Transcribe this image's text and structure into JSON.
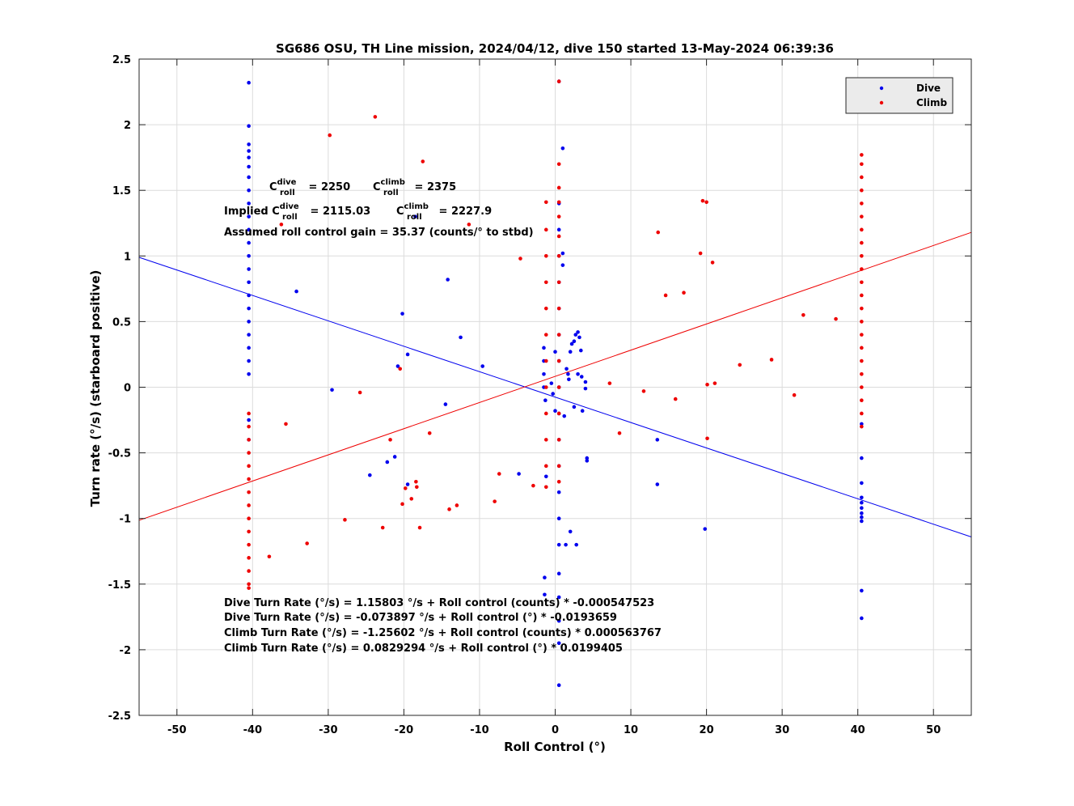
{
  "chart_data": {
    "type": "scatter",
    "title": "SG686 OSU, TH Line mission, 2024/04/12, dive 150 started 13-May-2024 06:39:36",
    "xlabel": "Roll Control (°)",
    "ylabel": "Turn rate (°/s) (starboard positive)",
    "xlim": [
      -55,
      55
    ],
    "ylim": [
      -2.5,
      2.5
    ],
    "xticks": [
      -50,
      -40,
      -30,
      -20,
      -10,
      0,
      10,
      20,
      30,
      40,
      50
    ],
    "yticks": [
      -2.5,
      -2,
      -1.5,
      -1,
      -0.5,
      0,
      0.5,
      1,
      1.5,
      2,
      2.5
    ],
    "grid": true,
    "legend_position": "top-right",
    "series": [
      {
        "name": "Dive",
        "color": "#0000ee",
        "points": [
          [
            -40.5,
            2.32
          ],
          [
            -40.5,
            1.99
          ],
          [
            -40.5,
            1.85
          ],
          [
            -40.5,
            1.8
          ],
          [
            -40.5,
            1.75
          ],
          [
            -40.5,
            1.68
          ],
          [
            -40.5,
            1.6
          ],
          [
            -40.5,
            1.5
          ],
          [
            -40.5,
            1.4
          ],
          [
            -40.5,
            1.3
          ],
          [
            -40.5,
            1.2
          ],
          [
            -40.5,
            1.1
          ],
          [
            -40.5,
            1.0
          ],
          [
            -40.5,
            0.9
          ],
          [
            -40.5,
            0.8
          ],
          [
            -40.5,
            0.7
          ],
          [
            -40.5,
            0.6
          ],
          [
            -40.5,
            0.5
          ],
          [
            -40.5,
            0.4
          ],
          [
            -40.5,
            0.3
          ],
          [
            -40.5,
            0.2
          ],
          [
            -40.5,
            0.1
          ],
          [
            -40.5,
            -0.25
          ],
          [
            -40.5,
            -0.4
          ],
          [
            -34.2,
            0.73
          ],
          [
            -29.5,
            -0.02
          ],
          [
            -24.5,
            -0.67
          ],
          [
            -22.2,
            -0.57
          ],
          [
            -21.2,
            -0.53
          ],
          [
            -20.8,
            0.16
          ],
          [
            -20.2,
            0.56
          ],
          [
            -19.5,
            0.25
          ],
          [
            -19.5,
            -0.74
          ],
          [
            -18.5,
            1.3
          ],
          [
            -14.5,
            -0.13
          ],
          [
            -14.2,
            0.82
          ],
          [
            -12.5,
            0.38
          ],
          [
            -9.6,
            0.16
          ],
          [
            -4.8,
            -0.66
          ],
          [
            -1.5,
            0.3
          ],
          [
            -1.5,
            0.2
          ],
          [
            -1.5,
            0.1
          ],
          [
            -1.5,
            0.0
          ],
          [
            -1.3,
            -0.1
          ],
          [
            -1.2,
            -0.68
          ],
          [
            -1.4,
            -1.45
          ],
          [
            -1.4,
            -1.58
          ],
          [
            -0.5,
            0.03
          ],
          [
            -0.3,
            -0.05
          ],
          [
            0.0,
            0.27
          ],
          [
            0.0,
            -0.18
          ],
          [
            0.5,
            2.33
          ],
          [
            0.5,
            1.4
          ],
          [
            0.5,
            1.2
          ],
          [
            0.5,
            1.0
          ],
          [
            0.5,
            0.8
          ],
          [
            0.5,
            0.6
          ],
          [
            0.5,
            0.4
          ],
          [
            0.5,
            0.2
          ],
          [
            0.5,
            0.0
          ],
          [
            0.5,
            -0.2
          ],
          [
            0.5,
            -0.4
          ],
          [
            0.5,
            -0.6
          ],
          [
            0.5,
            -0.8
          ],
          [
            0.5,
            -1.0
          ],
          [
            0.5,
            -1.2
          ],
          [
            0.5,
            -1.42
          ],
          [
            0.5,
            -1.6
          ],
          [
            0.5,
            -1.78
          ],
          [
            0.5,
            -1.95
          ],
          [
            0.5,
            -2.27
          ],
          [
            1.0,
            1.82
          ],
          [
            1.0,
            1.02
          ],
          [
            1.0,
            0.93
          ],
          [
            1.2,
            -0.22
          ],
          [
            1.5,
            0.14
          ],
          [
            1.7,
            0.1
          ],
          [
            1.8,
            0.06
          ],
          [
            2.0,
            0.27
          ],
          [
            2.2,
            0.33
          ],
          [
            2.5,
            0.35
          ],
          [
            2.5,
            -0.15
          ],
          [
            2.7,
            0.4
          ],
          [
            3.0,
            0.42
          ],
          [
            3.0,
            0.1
          ],
          [
            3.2,
            0.38
          ],
          [
            3.4,
            0.28
          ],
          [
            3.5,
            0.08
          ],
          [
            3.6,
            -0.18
          ],
          [
            4.0,
            0.04
          ],
          [
            4.0,
            -0.01
          ],
          [
            4.2,
            -0.54
          ],
          [
            4.2,
            -0.56
          ],
          [
            1.4,
            -1.2
          ],
          [
            2.0,
            -1.1
          ],
          [
            2.8,
            -1.2
          ],
          [
            13.5,
            -0.4
          ],
          [
            13.5,
            -0.74
          ],
          [
            19.8,
            -1.08
          ],
          [
            40.5,
            -0.28
          ],
          [
            40.5,
            -0.54
          ],
          [
            40.5,
            -0.73
          ],
          [
            40.5,
            -0.84
          ],
          [
            40.5,
            -0.88
          ],
          [
            40.5,
            -0.92
          ],
          [
            40.5,
            -0.96
          ],
          [
            40.5,
            -0.99
          ],
          [
            40.5,
            -1.02
          ],
          [
            40.5,
            -1.55
          ],
          [
            40.5,
            -1.76
          ]
        ],
        "fit_line": [
          [
            -55,
            0.9897
          ],
          [
            55,
            -1.1404
          ]
        ]
      },
      {
        "name": "Climb",
        "color": "#ee0000",
        "points": [
          [
            -40.5,
            -0.2
          ],
          [
            -40.5,
            -0.3
          ],
          [
            -40.5,
            -0.4
          ],
          [
            -40.5,
            -0.5
          ],
          [
            -40.5,
            -0.6
          ],
          [
            -40.5,
            -0.7
          ],
          [
            -40.5,
            -0.8
          ],
          [
            -40.5,
            -0.9
          ],
          [
            -40.5,
            -1.0
          ],
          [
            -40.5,
            -1.1
          ],
          [
            -40.5,
            -1.2
          ],
          [
            -40.5,
            -1.3
          ],
          [
            -40.5,
            -1.4
          ],
          [
            -40.5,
            -1.5
          ],
          [
            -40.5,
            -1.53
          ],
          [
            -37.8,
            -1.29
          ],
          [
            -36.2,
            1.24
          ],
          [
            -35.6,
            -0.28
          ],
          [
            -32.8,
            -1.19
          ],
          [
            -29.8,
            1.92
          ],
          [
            -27.8,
            -1.01
          ],
          [
            -25.8,
            -0.04
          ],
          [
            -23.8,
            2.06
          ],
          [
            -22.8,
            -1.07
          ],
          [
            -21.8,
            -0.4
          ],
          [
            -20.5,
            0.14
          ],
          [
            -20.2,
            -0.89
          ],
          [
            -19.8,
            -0.77
          ],
          [
            -19.0,
            -0.85
          ],
          [
            -18.4,
            -0.72
          ],
          [
            -18.3,
            -0.76
          ],
          [
            -17.9,
            -1.07
          ],
          [
            -17.5,
            1.72
          ],
          [
            -16.6,
            -0.35
          ],
          [
            -14.0,
            -0.93
          ],
          [
            -13.0,
            -0.9
          ],
          [
            -11.4,
            1.24
          ],
          [
            -8.0,
            -0.87
          ],
          [
            -7.4,
            -0.66
          ],
          [
            -4.6,
            0.98
          ],
          [
            -2.9,
            -0.75
          ],
          [
            -1.2,
            1.41
          ],
          [
            -1.2,
            1.2
          ],
          [
            -1.2,
            1.0
          ],
          [
            -1.2,
            0.8
          ],
          [
            -1.2,
            0.6
          ],
          [
            -1.2,
            0.4
          ],
          [
            -1.2,
            0.2
          ],
          [
            -1.2,
            0.0
          ],
          [
            -1.2,
            -0.2
          ],
          [
            -1.2,
            -0.4
          ],
          [
            -1.2,
            -0.6
          ],
          [
            -1.2,
            -0.76
          ],
          [
            0.5,
            2.33
          ],
          [
            0.5,
            1.7
          ],
          [
            0.5,
            1.52
          ],
          [
            0.5,
            1.41
          ],
          [
            0.5,
            1.3
          ],
          [
            0.5,
            1.15
          ],
          [
            0.5,
            1.0
          ],
          [
            0.5,
            0.8
          ],
          [
            0.5,
            0.6
          ],
          [
            0.5,
            0.4
          ],
          [
            0.5,
            0.2
          ],
          [
            0.5,
            0.0
          ],
          [
            0.5,
            -0.2
          ],
          [
            0.5,
            -0.4
          ],
          [
            0.5,
            -0.6
          ],
          [
            0.5,
            -0.72
          ],
          [
            7.2,
            0.03
          ],
          [
            8.5,
            -0.35
          ],
          [
            11.7,
            -0.03
          ],
          [
            13.6,
            1.18
          ],
          [
            14.6,
            0.7
          ],
          [
            15.9,
            -0.09
          ],
          [
            17.0,
            0.72
          ],
          [
            19.2,
            1.02
          ],
          [
            19.5,
            1.42
          ],
          [
            20.0,
            1.41
          ],
          [
            20.1,
            0.02
          ],
          [
            20.1,
            -0.39
          ],
          [
            20.8,
            0.95
          ],
          [
            21.1,
            0.03
          ],
          [
            24.4,
            0.17
          ],
          [
            28.6,
            0.21
          ],
          [
            31.6,
            -0.06
          ],
          [
            32.8,
            0.55
          ],
          [
            37.1,
            0.52
          ],
          [
            40.5,
            1.77
          ],
          [
            40.5,
            1.7
          ],
          [
            40.5,
            1.6
          ],
          [
            40.5,
            1.5
          ],
          [
            40.5,
            1.4
          ],
          [
            40.5,
            1.3
          ],
          [
            40.5,
            1.2
          ],
          [
            40.5,
            1.1
          ],
          [
            40.5,
            1.0
          ],
          [
            40.5,
            0.9
          ],
          [
            40.5,
            0.8
          ],
          [
            40.5,
            0.7
          ],
          [
            40.5,
            0.6
          ],
          [
            40.5,
            0.5
          ],
          [
            40.5,
            0.4
          ],
          [
            40.5,
            0.3
          ],
          [
            40.5,
            0.2
          ],
          [
            40.5,
            0.1
          ],
          [
            40.5,
            0.0
          ],
          [
            40.5,
            -0.1
          ],
          [
            40.5,
            -0.2
          ],
          [
            40.5,
            -0.3
          ]
        ],
        "fit_line": [
          [
            -55,
            -1.0138
          ],
          [
            55,
            1.1796
          ]
        ]
      }
    ]
  },
  "legend": {
    "dive_label": "Dive",
    "climb_label": "Climb"
  },
  "annotations": {
    "c_roll_line": {
      "c1": "C",
      "sup1": "dive",
      "sub1": "roll",
      "v1": " = 2250",
      "c2": "C",
      "sup2": "climb",
      "sub2": "roll",
      "v2": " = 2375"
    },
    "implied_line": {
      "prefix": "Implied C",
      "sup1": "dive",
      "sub1": "roll",
      "v1": " = 2115.03",
      "c2": "C",
      "sup2": "climb",
      "sub2": "roll",
      "v2": " = 2227.9"
    },
    "gain_line": "Assumed roll control gain = 35.37 (counts/° to stbd)",
    "fits": [
      "Dive Turn Rate (°/s) = 1.15803 °/s + Roll control (counts) * -0.000547523",
      "Dive Turn Rate (°/s) = -0.073897 °/s + Roll control (°) * -0.0193659",
      "Climb Turn Rate (°/s) = -1.25602 °/s + Roll control (counts) * 0.000563767",
      "Climb Turn Rate (°/s) = 0.0829294 °/s + Roll control (°) * 0.0199405"
    ]
  }
}
